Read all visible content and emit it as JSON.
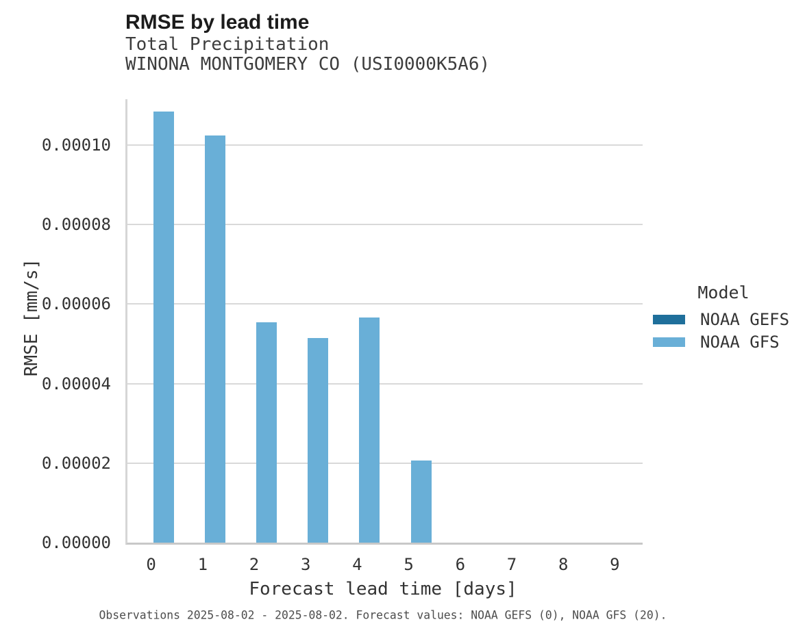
{
  "title": "RMSE by lead time",
  "subtitle_line1": "Total Precipitation",
  "subtitle_line2": "WINONA MONTGOMERY CO (USI0000K5A6)",
  "footer": "Observations 2025-08-02 - 2025-08-02. Forecast values: NOAA GEFS (0), NOAA GFS (20).",
  "colors": {
    "noaa_gefs": "#1f6f9b",
    "noaa_gfs": "#69afd7",
    "gridline": "#d9d9d9",
    "axis_spine": "#c8c8c8",
    "text": "#333333"
  },
  "legend": {
    "title": "Model",
    "position": "right"
  },
  "chart_data": {
    "type": "bar",
    "title": "RMSE by lead time",
    "subtitle": [
      "Total Precipitation",
      "WINONA MONTGOMERY CO (USI0000K5A6)"
    ],
    "xlabel": "Forecast lead time [days]",
    "ylabel": "RMSE [mm/s]",
    "categories": [
      "0",
      "1",
      "2",
      "3",
      "4",
      "5",
      "6",
      "7",
      "8",
      "9"
    ],
    "series": [
      {
        "name": "NOAA GEFS",
        "color": "#1f6f9b",
        "values": [
          0,
          0,
          0,
          0,
          0,
          0,
          0,
          0,
          0,
          0
        ]
      },
      {
        "name": "NOAA GFS",
        "color": "#69afd7",
        "values": [
          0.0001084,
          0.0001024,
          5.54e-05,
          5.14e-05,
          5.66e-05,
          2.07e-05,
          0,
          0,
          0,
          0
        ]
      }
    ],
    "ylim": [
      0,
      0.0001115
    ],
    "yticks": [
      {
        "value": 0.0,
        "label": "0.00000"
      },
      {
        "value": 2e-05,
        "label": "0.00002"
      },
      {
        "value": 4e-05,
        "label": "0.00004"
      },
      {
        "value": 6e-05,
        "label": "0.00006"
      },
      {
        "value": 8e-05,
        "label": "0.00008"
      },
      {
        "value": 0.0001,
        "label": "0.00010"
      }
    ],
    "grid": "horizontal",
    "legend_title": "Model",
    "legend_position": "right",
    "caption": "Observations 2025-08-02 - 2025-08-02. Forecast values: NOAA GEFS (0), NOAA GFS (20)."
  }
}
